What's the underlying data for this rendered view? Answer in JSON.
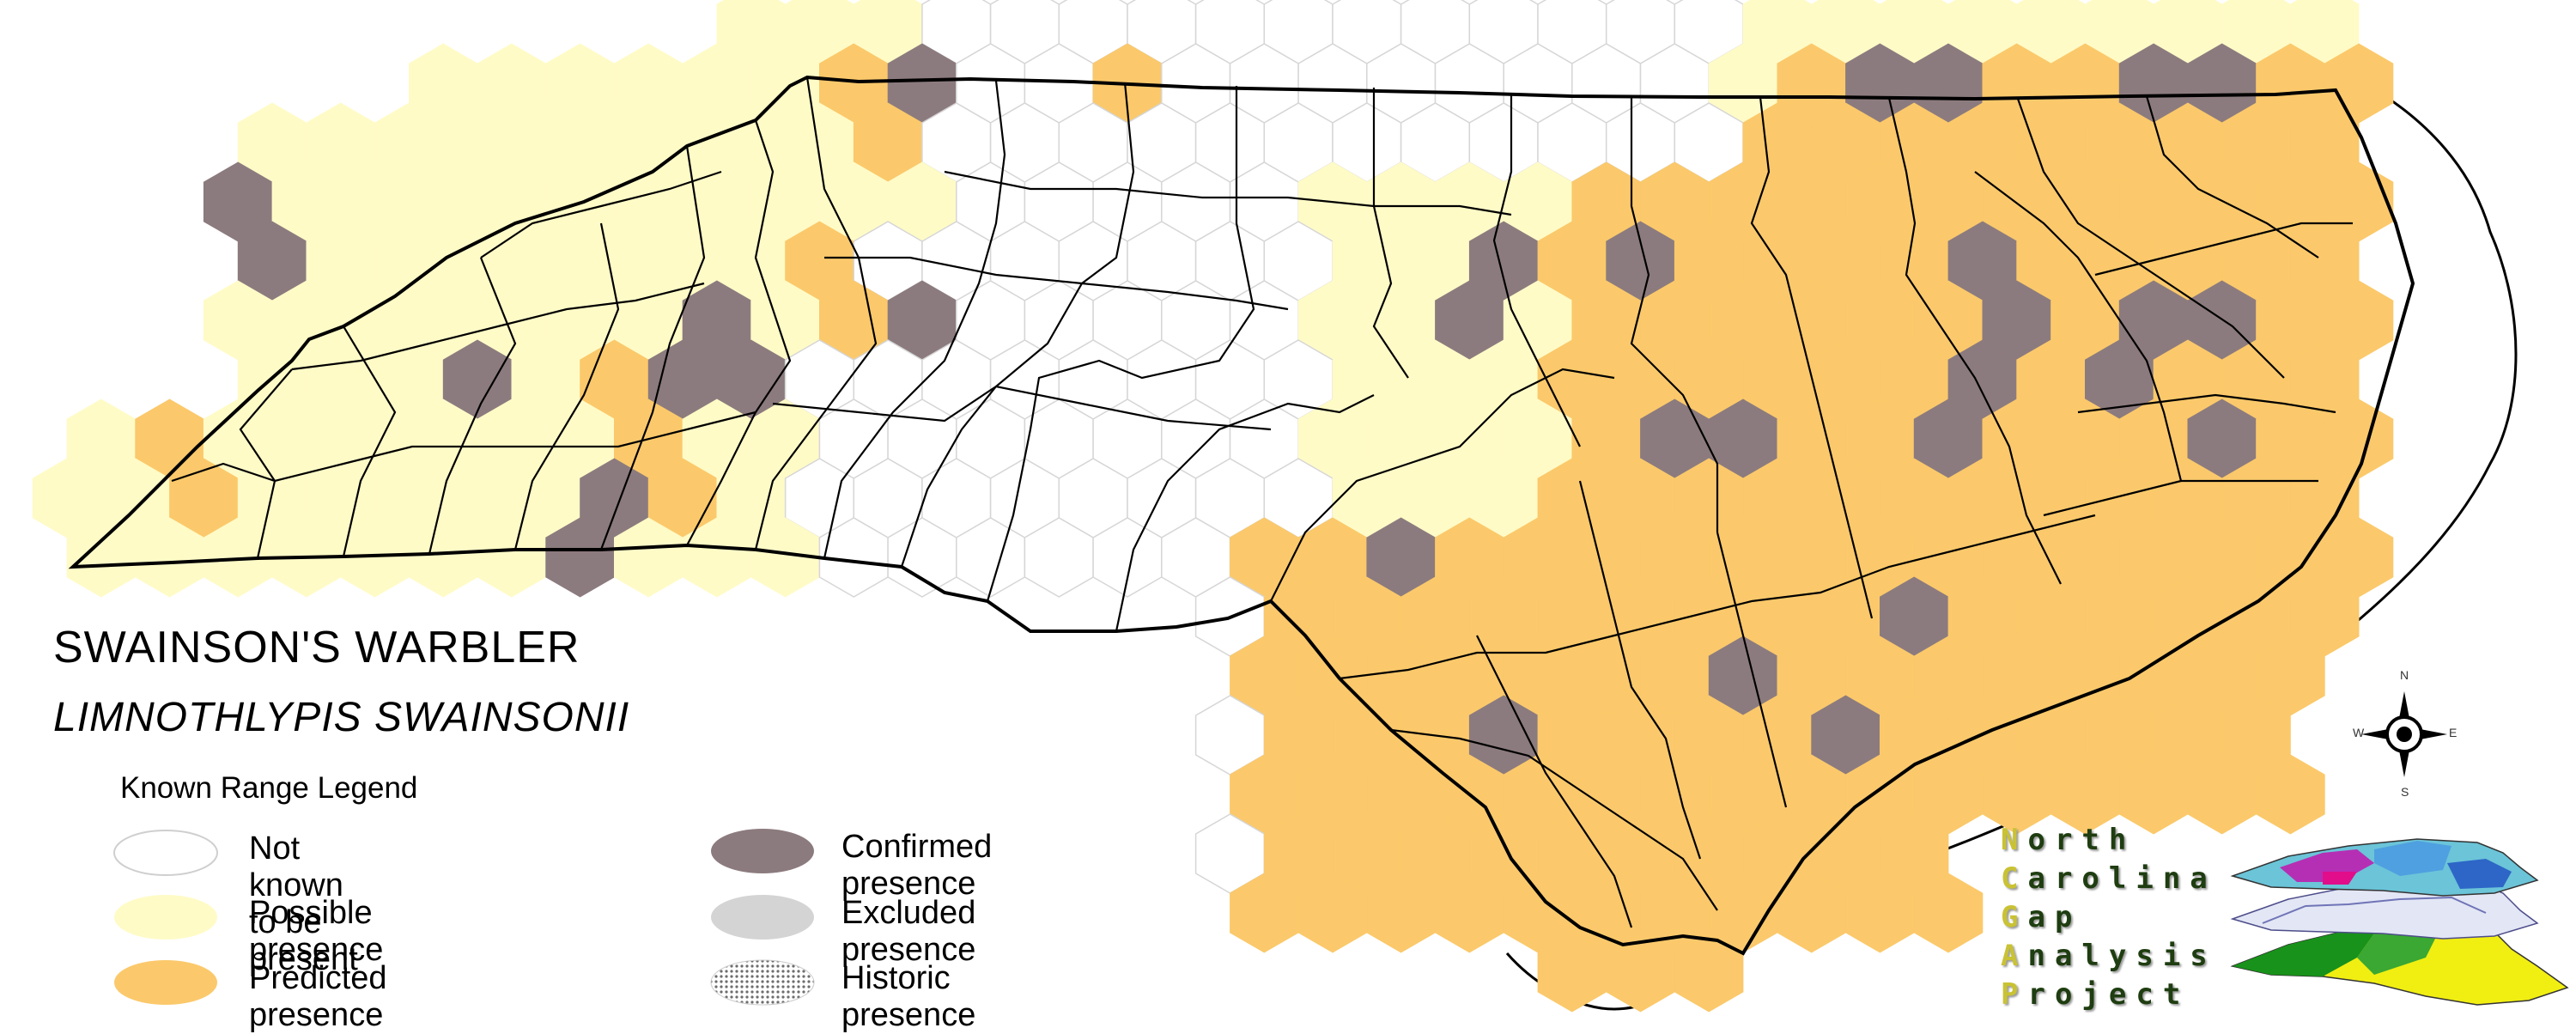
{
  "title": "SWAINSON'S WARBLER",
  "scientific_name": "LIMNOTHLYPIS SWAINSONII",
  "legend": {
    "title": "Known Range Legend",
    "items": [
      {
        "id": "not-known",
        "label": "Not known to be present",
        "fill": "#ffffff",
        "stroke": "#cfcfcf"
      },
      {
        "id": "possible",
        "label": "Possible presence",
        "fill": "#fffbc7",
        "stroke": "#fffbc7"
      },
      {
        "id": "predicted",
        "label": "Predicted presence",
        "fill": "#fbc96b",
        "stroke": "#fbc96b"
      },
      {
        "id": "confirmed",
        "label": "Confirmed presence",
        "fill": "#8c7b7e",
        "stroke": "#8c7b7e"
      },
      {
        "id": "excluded",
        "label": "Excluded presence",
        "fill": "#d4d4d4",
        "stroke": "#d4d4d4"
      },
      {
        "id": "historic",
        "label": "Historic presence",
        "fill": "url(#dots)",
        "stroke": "#cccccc"
      }
    ]
  },
  "compass": {
    "n": "N",
    "s": "S",
    "e": "E",
    "w": "W"
  },
  "project_logo": {
    "words": [
      {
        "first": "N",
        "rest": "orth"
      },
      {
        "first": "C",
        "rest": "arolina"
      },
      {
        "first": "G",
        "rest": "ap"
      },
      {
        "first": "A",
        "rest": "nalysis"
      },
      {
        "first": "P",
        "rest": "roject"
      }
    ]
  },
  "colors": {
    "not_known": "#ffffff",
    "possible": "#fffbc7",
    "predicted": "#fbc96b",
    "confirmed": "#8c7b7e",
    "county_line": "#000000",
    "hex_grid_line": "#d6d6d6"
  }
}
